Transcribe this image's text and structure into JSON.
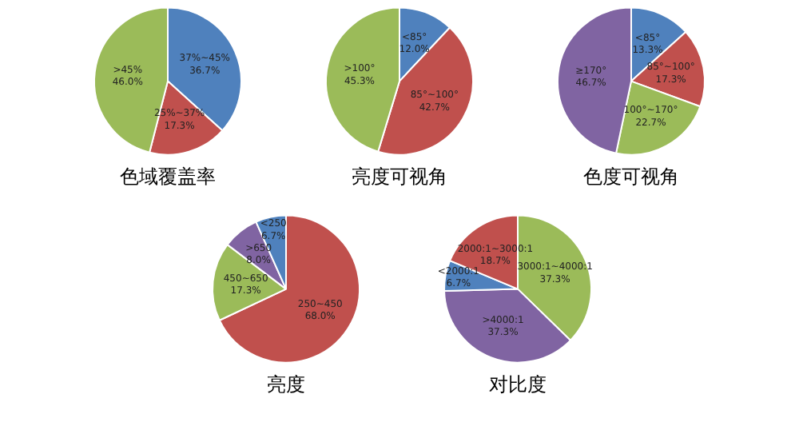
{
  "chart_data": [
    {
      "type": "pie",
      "title": "色域覆盖率",
      "categories": [
        "37%~45%",
        "25%~37%",
        ">45%"
      ],
      "values": [
        36.7,
        17.3,
        46.0
      ],
      "value_labels": [
        "36.7%",
        "17.3%",
        "46.0%"
      ],
      "colors": [
        "#4f81bd",
        "#c0504d",
        "#9bbb59"
      ]
    },
    {
      "type": "pie",
      "title": "亮度可视角",
      "categories": [
        "<85°",
        "85°~100°",
        ">100°"
      ],
      "values": [
        12.0,
        42.7,
        45.3
      ],
      "value_labels": [
        "12.0%",
        "42.7%",
        "45.3%"
      ],
      "colors": [
        "#4f81bd",
        "#c0504d",
        "#9bbb59"
      ]
    },
    {
      "type": "pie",
      "title": "色度可视角",
      "categories": [
        "<85°",
        "85°~100°",
        "100°~170°",
        "≥170°"
      ],
      "values": [
        13.3,
        17.3,
        22.7,
        46.7
      ],
      "value_labels": [
        "13.3%",
        "17.3%",
        "22.7%",
        "46.7%"
      ],
      "colors": [
        "#4f81bd",
        "#c0504d",
        "#9bbb59",
        "#8064a2"
      ]
    },
    {
      "type": "pie",
      "title": "亮度",
      "categories": [
        "250~450",
        "450~650",
        ">650",
        "<250"
      ],
      "values": [
        68.0,
        17.3,
        8.0,
        6.7
      ],
      "value_labels": [
        "68.0%",
        "17.3%",
        "8.0%",
        "6.7%"
      ],
      "colors": [
        "#c0504d",
        "#9bbb59",
        "#8064a2",
        "#4f81bd"
      ]
    },
    {
      "type": "pie",
      "title": "对比度",
      "categories": [
        "3000:1~4000:1",
        ">4000:1",
        "<2000:1",
        "2000:1~3000:1"
      ],
      "values": [
        37.3,
        37.3,
        6.7,
        18.7
      ],
      "value_labels": [
        "37.3%",
        "37.3%",
        "6.7%",
        "18.7%"
      ],
      "colors": [
        "#9bbb59",
        "#8064a2",
        "#4f81bd",
        "#c0504d"
      ]
    }
  ]
}
